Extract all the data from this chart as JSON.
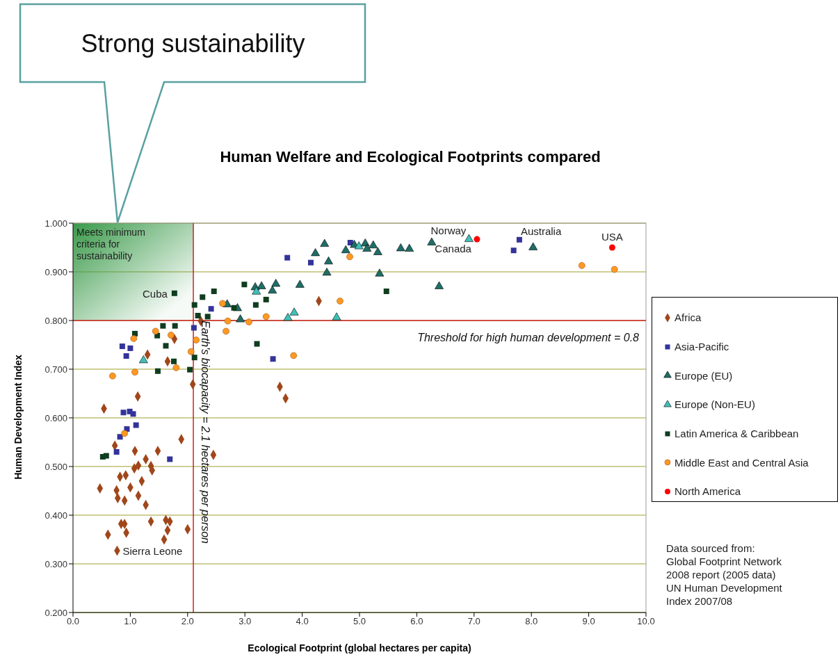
{
  "chart_data": {
    "type": "scatter",
    "title": "Human Welfare and Ecological Footprints compared",
    "xlabel": "Ecological Footprint (global hectares per capita)",
    "ylabel": "Human Development Index",
    "xlim": [
      0,
      10
    ],
    "xticks": [
      {
        "value": 0,
        "label": "0.0"
      },
      {
        "value": 1,
        "label": "1.0"
      },
      {
        "value": 2,
        "label": "2.0"
      },
      {
        "value": 3,
        "label": "3.0"
      },
      {
        "value": 4,
        "label": "4.0"
      },
      {
        "value": 5,
        "label": "5.0"
      },
      {
        "value": 6,
        "label": "6.0"
      },
      {
        "value": 7,
        "label": "7.0"
      },
      {
        "value": 8,
        "label": "8.0"
      },
      {
        "value": 9,
        "label": "9.0"
      },
      {
        "value": 10,
        "label": "10.0"
      }
    ],
    "ylim": [
      0.2,
      1.0
    ],
    "yticks": [
      {
        "value": 0.2,
        "label": "0.200"
      },
      {
        "value": 0.3,
        "label": "0.300"
      },
      {
        "value": 0.4,
        "label": "0.400"
      },
      {
        "value": 0.5,
        "label": "0.500"
      },
      {
        "value": 0.6,
        "label": "0.600"
      },
      {
        "value": 0.7,
        "label": "0.700"
      },
      {
        "value": 0.8,
        "label": "0.800"
      },
      {
        "value": 0.9,
        "label": "0.900"
      },
      {
        "value": 1.0,
        "label": "1.000"
      }
    ],
    "grid": "y",
    "legend": "right",
    "series": [
      {
        "name": "Africa",
        "color": "#a0461a",
        "marker": "diamond",
        "x": [
          1.13,
          0.54,
          1.89,
          0.73,
          1.08,
          1.48,
          2.45,
          1.27,
          1.14,
          1.07,
          1.36,
          1.38,
          0.82,
          0.92,
          1.2,
          0.47,
          0.76,
          1.0,
          0.78,
          0.9,
          1.14,
          1.27,
          0.84,
          0.9,
          1.36,
          1.62,
          1.69,
          0.61,
          0.93,
          1.65,
          2.0,
          1.59,
          0.77,
          2.09,
          1.77,
          1.65,
          1.3,
          2.23,
          4.29,
          3.61,
          3.71
        ],
        "values": [
          0.644,
          0.619,
          0.556,
          0.543,
          0.532,
          0.532,
          0.524,
          0.515,
          0.502,
          0.496,
          0.501,
          0.492,
          0.479,
          0.482,
          0.47,
          0.455,
          0.451,
          0.457,
          0.435,
          0.43,
          0.44,
          0.421,
          0.382,
          0.382,
          0.387,
          0.39,
          0.387,
          0.36,
          0.364,
          0.369,
          0.371,
          0.35,
          0.327,
          0.669,
          0.762,
          0.716,
          0.73,
          0.799,
          0.84,
          0.664,
          0.64
        ]
      },
      {
        "name": "Asia-Pacific",
        "color": "#33339a",
        "marker": "square",
        "x": [
          0.88,
          0.99,
          1.05,
          1.1,
          0.94,
          0.82,
          0.76,
          1.69,
          0.86,
          1.0,
          0.93,
          2.11,
          2.41,
          3.74,
          4.15,
          4.84,
          3.49,
          7.79,
          7.69
        ],
        "values": [
          0.611,
          0.613,
          0.608,
          0.585,
          0.577,
          0.561,
          0.53,
          0.515,
          0.747,
          0.743,
          0.727,
          0.785,
          0.824,
          0.929,
          0.919,
          0.96,
          0.721,
          0.966,
          0.944
        ]
      },
      {
        "name": "Europe (EU)",
        "color": "#1f6e66",
        "marker": "triangle",
        "x": [
          4.39,
          4.23,
          4.46,
          4.43,
          4.76,
          4.91,
          5.1,
          5.13,
          5.24,
          5.32,
          5.35,
          3.96,
          3.54,
          3.48,
          3.29,
          3.18,
          2.69,
          2.87,
          2.92,
          5.72,
          5.87,
          6.26,
          8.03,
          6.39
        ],
        "values": [
          0.957,
          0.938,
          0.921,
          0.898,
          0.944,
          0.955,
          0.958,
          0.947,
          0.954,
          0.94,
          0.896,
          0.873,
          0.875,
          0.861,
          0.87,
          0.868,
          0.833,
          0.825,
          0.802,
          0.948,
          0.947,
          0.96,
          0.95,
          0.87
        ]
      },
      {
        "name": "Europe (Non-EU)",
        "color": "#40c0b8",
        "marker": "triangle",
        "x": [
          3.2,
          3.86,
          3.75,
          4.6,
          4.99,
          1.23,
          6.91
        ],
        "values": [
          0.859,
          0.816,
          0.805,
          0.806,
          0.952,
          0.718,
          0.967
        ]
      },
      {
        "name": "Latin America & Caribbean",
        "color": "#0f3d1f",
        "marker": "square",
        "x": [
          1.77,
          2.46,
          2.26,
          2.12,
          2.18,
          2.35,
          1.57,
          1.78,
          1.08,
          1.47,
          1.62,
          1.76,
          1.48,
          2.04,
          2.12,
          2.99,
          3.37,
          3.19,
          2.81,
          3.21,
          5.47,
          0.52,
          0.58
        ],
        "values": [
          0.856,
          0.86,
          0.848,
          0.832,
          0.81,
          0.808,
          0.789,
          0.789,
          0.773,
          0.769,
          0.748,
          0.716,
          0.696,
          0.699,
          0.724,
          0.874,
          0.843,
          0.832,
          0.826,
          0.752,
          0.86,
          0.52,
          0.522
        ]
      },
      {
        "name": "Middle East and Central Asia",
        "color": "#ff9922",
        "marker": "circle",
        "x": [
          1.44,
          1.06,
          1.71,
          2.15,
          2.06,
          1.8,
          1.08,
          0.69,
          0.9,
          2.61,
          2.7,
          3.07,
          3.37,
          2.67,
          3.85,
          4.66,
          4.83,
          8.88,
          9.45
        ],
        "values": [
          0.778,
          0.763,
          0.77,
          0.76,
          0.736,
          0.703,
          0.694,
          0.686,
          0.568,
          0.835,
          0.799,
          0.797,
          0.808,
          0.778,
          0.728,
          0.84,
          0.931,
          0.913,
          0.905
        ]
      },
      {
        "name": "North America",
        "color": "#ff0000",
        "marker": "circle",
        "x": [
          7.05,
          9.41
        ],
        "values": [
          0.967,
          0.95
        ]
      }
    ],
    "ref_lines": [
      {
        "axis": "x",
        "value": 2.1,
        "label": "Earth's biocapacity = 2.1 hectares per person",
        "color": "#cc2222"
      },
      {
        "axis": "y",
        "value": 0.8,
        "label": "Threshold for high human development = 0.8",
        "color": "#cc2222"
      }
    ],
    "bands": [
      {
        "axis": "x",
        "from": 0,
        "to": 2.1,
        "label": "Meets minimum criteria for sustainability",
        "color": "#3a9a4a"
      }
    ],
    "annotations": [
      {
        "text": "Cuba",
        "x": 1.77,
        "y": 0.856
      },
      {
        "text": "Sierra Leone",
        "x": 0.77,
        "y": 0.327
      },
      {
        "text": "Norway",
        "x": 6.91,
        "y": 0.967
      },
      {
        "text": "Canada",
        "x": 7.05,
        "y": 0.967
      },
      {
        "text": "Australia",
        "x": 7.79,
        "y": 0.966
      },
      {
        "text": "USA",
        "x": 9.41,
        "y": 0.95
      },
      "Strong sustainability",
      "Data sourced from:\nGlobal Footprint Network\n2008 report (2005 data)\nUN Human Development\nIndex 2007/08"
    ]
  }
}
